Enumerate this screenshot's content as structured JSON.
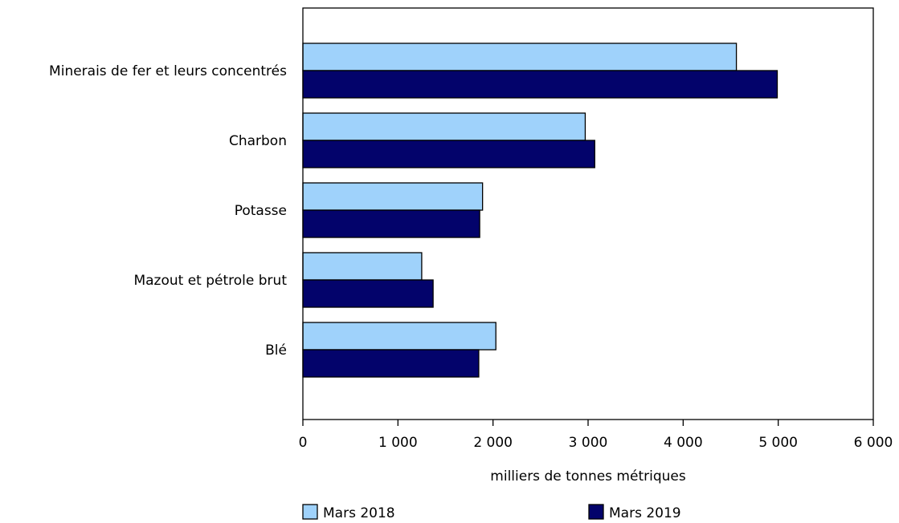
{
  "chart_data": {
    "type": "bar",
    "orientation": "horizontal",
    "categories": [
      "Minerais de fer et leurs concentrés",
      "Charbon",
      "Potasse",
      "Mazout et pétrole brut",
      "Blé"
    ],
    "series": [
      {
        "name": "Mars 2018",
        "color": "#9fd2fb",
        "values": [
          4560,
          2970,
          1890,
          1250,
          2030
        ]
      },
      {
        "name": "Mars 2019",
        "color": "#03036b",
        "values": [
          4990,
          3070,
          1860,
          1370,
          1850
        ]
      }
    ],
    "xlabel": "milliers de tonnes métriques",
    "xlim": [
      0,
      6000
    ],
    "xticks": [
      0,
      1000,
      2000,
      3000,
      4000,
      5000,
      6000
    ],
    "xtick_labels": [
      "0",
      "1 000",
      "2 000",
      "3 000",
      "4 000",
      "5 000",
      "6 000"
    ],
    "grid": false,
    "legend_position": "bottom"
  }
}
